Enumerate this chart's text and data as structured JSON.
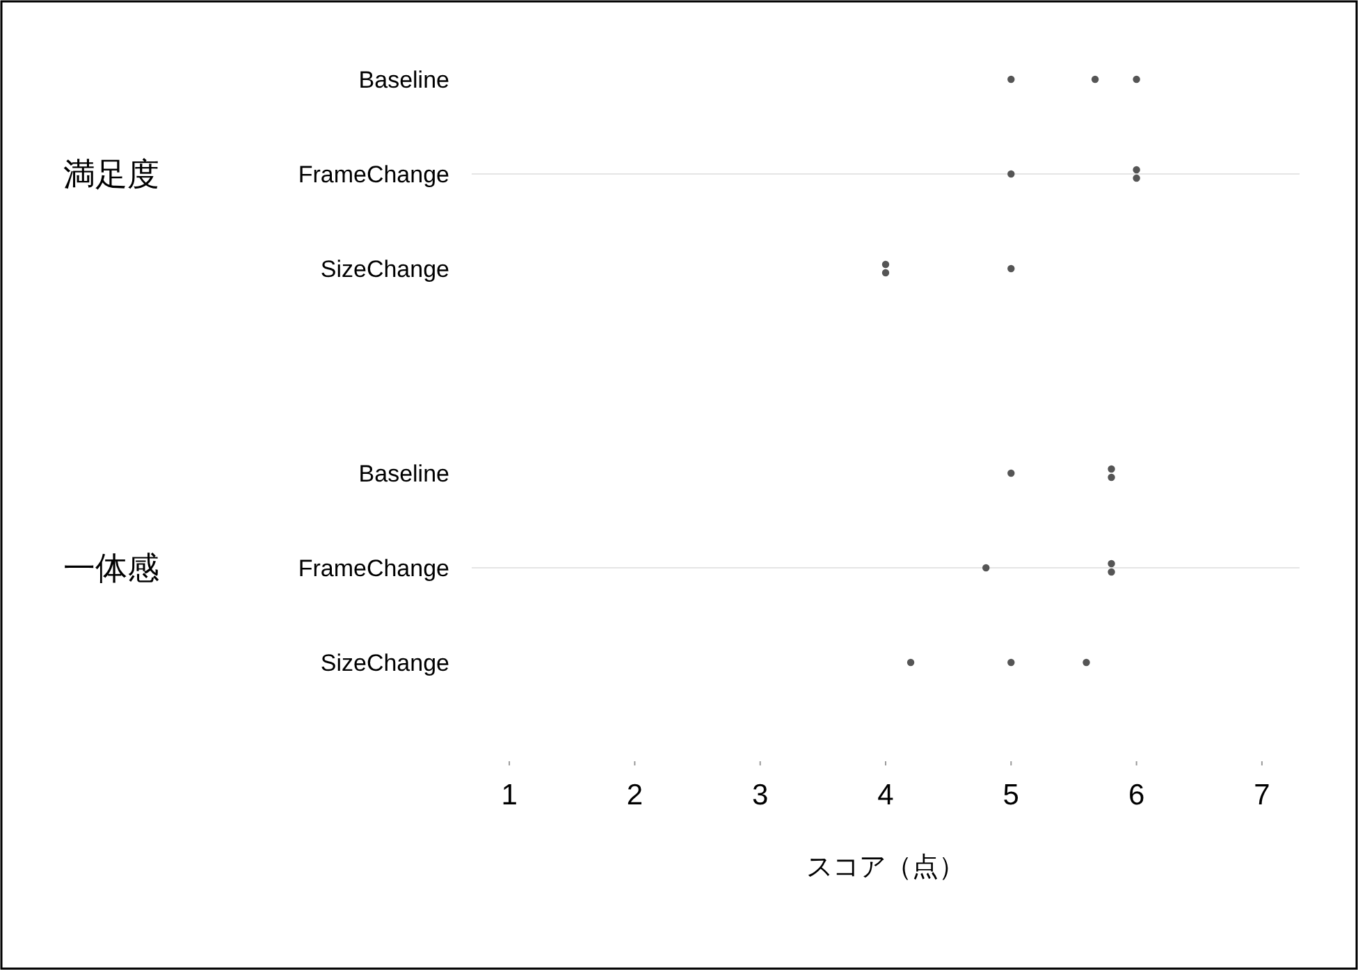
{
  "chart_data": [
    {
      "type": "scatter",
      "orientation": "horizontal",
      "title": "満足度",
      "categories": [
        "Baseline",
        "FrameChange",
        "SizeChange"
      ],
      "series": [
        {
          "color": "#555555",
          "x": [
            "Baseline",
            "Baseline",
            "Baseline",
            "FrameChange",
            "FrameChange",
            "FrameChange",
            "SizeChange",
            "SizeChange",
            "SizeChange"
          ],
          "values": [
            5,
            5.67,
            6,
            5,
            6,
            6,
            4,
            4,
            5
          ]
        }
      ],
      "xlim": [
        0.7,
        7.3
      ],
      "xticks": [
        1,
        2,
        3,
        4,
        5,
        6,
        7
      ],
      "tick_labels": "y",
      "marker": "circle",
      "ref_lines": [
        {
          "axis": "y",
          "value": "FrameChange",
          "color": "#e5e5e5"
        }
      ]
    },
    {
      "type": "scatter",
      "orientation": "horizontal",
      "title": "一体感",
      "categories": [
        "Baseline",
        "FrameChange",
        "SizeChange"
      ],
      "series": [
        {
          "color": "#555555",
          "x": [
            "Baseline",
            "Baseline",
            "Baseline",
            "FrameChange",
            "FrameChange",
            "FrameChange",
            "SizeChange",
            "SizeChange",
            "SizeChange"
          ],
          "values": [
            5,
            5.8,
            5.8,
            4.8,
            5.8,
            5.8,
            4.2,
            5,
            5.6
          ]
        }
      ],
      "xlim": [
        0.7,
        7.3
      ],
      "xticks": [
        1,
        2,
        3,
        4,
        5,
        6,
        7
      ],
      "xlabel": "スコア（点）",
      "marker": "circle",
      "ref_lines": [
        {
          "axis": "y",
          "value": "FrameChange",
          "color": "#e5e5e5"
        }
      ]
    }
  ]
}
